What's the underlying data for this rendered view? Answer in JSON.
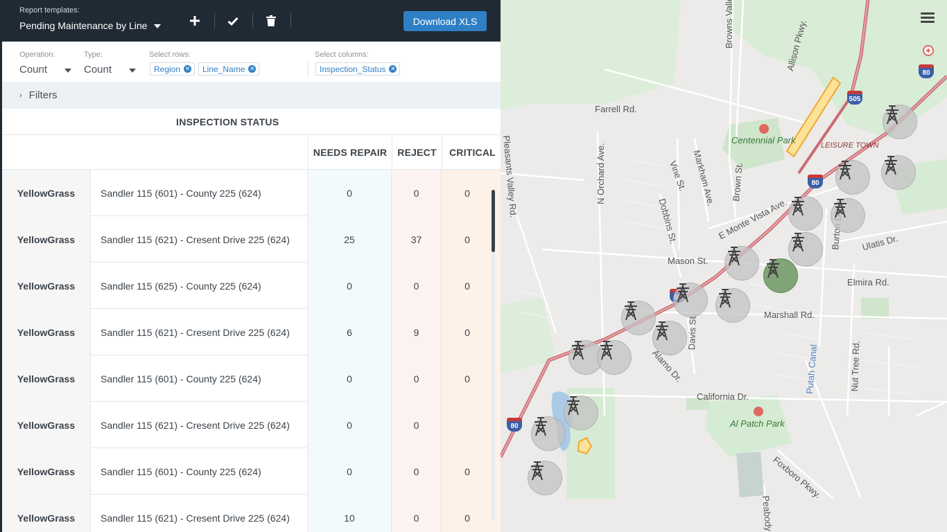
{
  "toolbar": {
    "templates_label": "Report templates:",
    "template_selected": "Pending Maintenance by Line",
    "download_label": "Download XLS",
    "add_icon": "plus-icon",
    "save_icon": "check-icon",
    "delete_icon": "trash-icon"
  },
  "options": {
    "operation_label": "Operation:",
    "operation_value": "Count",
    "type_label": "Type:",
    "type_value": "Count",
    "rows_label": "Select rows:",
    "row_chips": [
      "Region",
      "Line_Name"
    ],
    "columns_label": "Select columns:",
    "column_chips": [
      "Inspection_Status"
    ]
  },
  "filters": {
    "label": "Filters"
  },
  "table": {
    "group_header": "INSPECTION STATUS",
    "columns": [
      "NEEDS REPAIR",
      "REJECT",
      "CRITICAL"
    ],
    "rows": [
      {
        "region": "YellowGrass",
        "line": "Sandler 115 (601) - County 225 (624)",
        "repair": "0",
        "reject": "0",
        "critical": "0"
      },
      {
        "region": "YellowGrass",
        "line": "Sandler 115 (621) - Cresent Drive 225 (624)",
        "repair": "25",
        "reject": "37",
        "critical": "0"
      },
      {
        "region": "YellowGrass",
        "line": "Sandler 115 (625) - County 225 (624)",
        "repair": "0",
        "reject": "0",
        "critical": "0"
      },
      {
        "region": "YellowGrass",
        "line": "Sandler 115 (621) - Cresent Drive 225 (624)",
        "repair": "6",
        "reject": "9",
        "critical": "0"
      },
      {
        "region": "YellowGrass",
        "line": "Sandler 115 (601) - County 225 (624)",
        "repair": "0",
        "reject": "0",
        "critical": "0"
      },
      {
        "region": "YellowGrass",
        "line": "Sandler 115 (621) - Cresent Drive 225 (624)",
        "repair": "0",
        "reject": "0",
        "critical": ""
      },
      {
        "region": "YellowGrass",
        "line": "Sandler 115 (601) - County 225 (624)",
        "repair": "0",
        "reject": "0",
        "critical": "0"
      },
      {
        "region": "YellowGrass",
        "line": "Sandler 115 (621) - Cresent Drive 225 (624)",
        "repair": "10",
        "reject": "0",
        "critical": "0"
      }
    ]
  },
  "map": {
    "menu_icon": "hamburger-icon",
    "labels": {
      "browns_valley": "Browns Valley Rd.",
      "allison": "Allison Pkwy.",
      "farrell": "Farrell Rd.",
      "centennial": "Centennial Park",
      "leisure": "LEISURE TOWN",
      "orchard": "N Orchard Ave.",
      "vine": "Vine St.",
      "markham": "Markham Ave.",
      "brown": "Brown St.",
      "dobbins": "Dobbins St.",
      "monte_vista": "E Monte Vista Ave.",
      "burton": "Burton Dr.",
      "ulatis": "Ulatis Dr.",
      "mason": "Mason St.",
      "elmira": "Elmira Rd.",
      "marshall": "Marshall Rd.",
      "davis": "Davis St.",
      "alamo": "Alamo Dr.",
      "putah": "Putah Canal",
      "nut_tree": "Nut Tree Rd.",
      "california": "California Dr.",
      "al_patch": "Al Patch Park",
      "foxboro": "Foxboro Pkwy.",
      "peabody": "Peabody",
      "pleasants": "Pleasants Valley Rd."
    },
    "shields": {
      "i505": "505",
      "i80": "80"
    }
  }
}
